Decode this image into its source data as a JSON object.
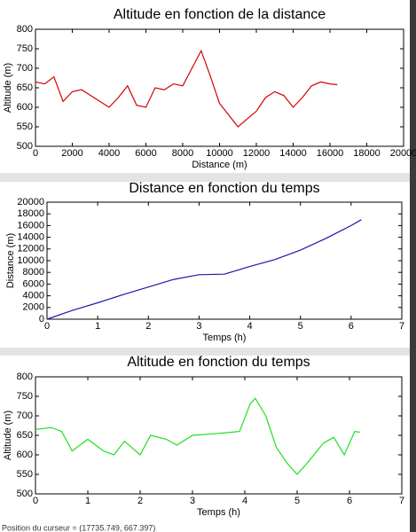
{
  "chart_data": [
    {
      "type": "line",
      "title": "Altitude en fonction de la distance",
      "x_label": "Distance (m)",
      "y_label": "Altitude (m)",
      "x": [
        0,
        500,
        1000,
        1500,
        2000,
        2500,
        3000,
        3500,
        4000,
        4500,
        5000,
        5500,
        6000,
        6500,
        7000,
        7500,
        8000,
        8500,
        9000,
        9500,
        10000,
        10500,
        11000,
        11500,
        12000,
        12500,
        13000,
        13500,
        14000,
        14500,
        15000,
        15500,
        16000,
        16400
      ],
      "values": [
        665,
        660,
        678,
        615,
        640,
        645,
        630,
        615,
        600,
        625,
        655,
        605,
        600,
        650,
        645,
        660,
        655,
        700,
        745,
        680,
        610,
        580,
        550,
        570,
        590,
        625,
        640,
        630,
        600,
        625,
        655,
        665,
        660,
        658
      ],
      "color": "#d40000",
      "xlim": [
        0,
        20000
      ],
      "ylim": [
        500,
        800
      ],
      "xticks": [
        0,
        2000,
        4000,
        6000,
        8000,
        10000,
        12000,
        14000,
        16000,
        18000,
        20000
      ],
      "yticks": [
        500,
        550,
        600,
        650,
        700,
        750,
        800
      ],
      "grid": false
    },
    {
      "type": "line",
      "title": "Distance en fonction du temps",
      "x_label": "Temps (h)",
      "y_label": "Distance (m)",
      "x": [
        0,
        0.5,
        1,
        1.5,
        2,
        2.5,
        3,
        3.5,
        4,
        4.5,
        5,
        5.5,
        6,
        6.2
      ],
      "values": [
        0,
        1500,
        2800,
        4200,
        5500,
        6800,
        7600,
        7700,
        9000,
        10200,
        11800,
        13800,
        16000,
        17000
      ],
      "color": "#1a1aa8",
      "xlim": [
        0,
        7
      ],
      "ylim": [
        0,
        20000
      ],
      "xticks": [
        0,
        1,
        2,
        3,
        4,
        5,
        6,
        7
      ],
      "yticks": [
        0,
        2000,
        4000,
        6000,
        8000,
        10000,
        12000,
        14000,
        16000,
        18000,
        20000
      ],
      "grid": false
    },
    {
      "type": "line",
      "title": "Altitude en fonction du temps",
      "x_label": "Temps (h)",
      "y_label": "Altitude (m)",
      "x": [
        0,
        0.3,
        0.5,
        0.7,
        1,
        1.3,
        1.5,
        1.7,
        2,
        2.2,
        2.5,
        2.7,
        3,
        3.5,
        3.9,
        4.1,
        4.2,
        4.4,
        4.6,
        4.8,
        5,
        5.2,
        5.5,
        5.7,
        5.9,
        6.1,
        6.2
      ],
      "values": [
        665,
        670,
        660,
        610,
        640,
        610,
        600,
        635,
        600,
        650,
        640,
        625,
        650,
        655,
        660,
        730,
        745,
        700,
        620,
        580,
        550,
        580,
        630,
        645,
        600,
        660,
        658
      ],
      "color": "#22dd22",
      "xlim": [
        0,
        7
      ],
      "ylim": [
        500,
        800
      ],
      "xticks": [
        0,
        1,
        2,
        3,
        4,
        5,
        6,
        7
      ],
      "yticks": [
        500,
        550,
        600,
        650,
        700,
        750,
        800
      ],
      "grid": false
    }
  ],
  "status": "Position du curseur = (17735.749, 667.397)"
}
